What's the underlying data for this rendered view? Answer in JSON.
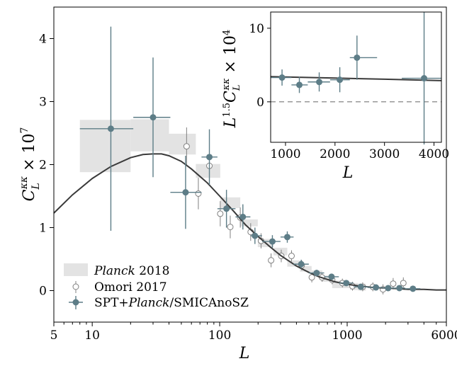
{
  "chart_data": [
    {
      "type": "line",
      "xscale": "log",
      "xlim": [
        5,
        6000
      ],
      "ylim": [
        -0.5,
        4.5
      ],
      "xticks": [
        5,
        10,
        100,
        1000,
        6000
      ],
      "xtick_labels": [
        "5",
        "10",
        "100",
        "1000",
        "6000"
      ],
      "yticks": [
        0,
        1,
        2,
        3,
        4
      ],
      "ytick_labels": [
        "0",
        "1",
        "2",
        "3",
        "4"
      ],
      "xlabel": "L",
      "ylabel": "C_L^{κκ} × 10^7",
      "legend_position": "lower-left",
      "colors": {
        "planck": "#e3e3e3",
        "omori": "#808080",
        "spt": "#5d7d87",
        "theory": "#3a3a3a"
      },
      "series": [
        {
          "name": "Planck 2018",
          "kind": "boxes",
          "boxes": [
            {
              "x0": 8,
              "x1": 20,
              "y0": 1.88,
              "y1": 2.71
            },
            {
              "x0": 20,
              "x1": 40,
              "y0": 2.21,
              "y1": 2.72
            },
            {
              "x0": 40,
              "x1": 65,
              "y0": 2.16,
              "y1": 2.49
            },
            {
              "x0": 65,
              "x1": 101,
              "y0": 1.79,
              "y1": 2.01
            },
            {
              "x0": 101,
              "x1": 145,
              "y0": 1.31,
              "y1": 1.48
            },
            {
              "x0": 145,
              "x1": 199,
              "y0": 1.02,
              "y1": 1.13
            },
            {
              "x0": 199,
              "x1": 264,
              "y0": 0.69,
              "y1": 0.82
            },
            {
              "x0": 264,
              "x1": 339,
              "y0": 0.56,
              "y1": 0.68
            },
            {
              "x0": 339,
              "x1": 426,
              "y0": 0.38,
              "y1": 0.48
            },
            {
              "x0": 426,
              "x1": 526,
              "y0": 0.3,
              "y1": 0.39
            },
            {
              "x0": 526,
              "x1": 638,
              "y0": 0.22,
              "y1": 0.32
            },
            {
              "x0": 638,
              "x1": 763,
              "y0": 0.14,
              "y1": 0.24
            },
            {
              "x0": 763,
              "x1": 901,
              "y0": 0.04,
              "y1": 0.16
            },
            {
              "x0": 901,
              "x1": 1053,
              "y0": 0.04,
              "y1": 0.14
            },
            {
              "x0": 1053,
              "x1": 1218,
              "y0": 0.01,
              "y1": 0.12
            },
            {
              "x0": 1218,
              "x1": 1400,
              "y0": 0.0,
              "y1": 0.11
            }
          ]
        },
        {
          "name": "Omori 2017",
          "kind": "open-points",
          "points": [
            {
              "x": 55,
              "y": 2.29,
              "yerr": 0.3
            },
            {
              "x": 68,
              "y": 1.54,
              "yerr": 0.25
            },
            {
              "x": 83,
              "y": 1.98,
              "yerr": 0.22
            },
            {
              "x": 101,
              "y": 1.22,
              "yerr": 0.2
            },
            {
              "x": 121,
              "y": 1.01,
              "yerr": 0.18
            },
            {
              "x": 145,
              "y": 1.16,
              "yerr": 0.16
            },
            {
              "x": 175,
              "y": 0.93,
              "yerr": 0.14
            },
            {
              "x": 211,
              "y": 0.79,
              "yerr": 0.12
            },
            {
              "x": 253,
              "y": 0.48,
              "yerr": 0.11
            },
            {
              "x": 304,
              "y": 0.55,
              "yerr": 0.1
            },
            {
              "x": 366,
              "y": 0.55,
              "yerr": 0.09
            },
            {
              "x": 440,
              "y": 0.4,
              "yerr": 0.08
            },
            {
              "x": 528,
              "y": 0.21,
              "yerr": 0.08
            },
            {
              "x": 635,
              "y": 0.21,
              "yerr": 0.07
            },
            {
              "x": 763,
              "y": 0.17,
              "yerr": 0.07
            },
            {
              "x": 917,
              "y": 0.12,
              "yerr": 0.07
            },
            {
              "x": 1101,
              "y": 0.07,
              "yerr": 0.07
            },
            {
              "x": 1323,
              "y": 0.06,
              "yerr": 0.07
            },
            {
              "x": 1590,
              "y": 0.06,
              "yerr": 0.07
            },
            {
              "x": 1910,
              "y": 0.02,
              "yerr": 0.08
            },
            {
              "x": 2295,
              "y": 0.11,
              "yerr": 0.09
            },
            {
              "x": 2758,
              "y": 0.12,
              "yerr": 0.09
            }
          ]
        },
        {
          "name": "SPT+Planck/SMICAnoSZ",
          "name_parts": [
            "SPT+",
            "Planck",
            "/SMICAnoSZ"
          ],
          "kind": "filled-points",
          "points": [
            {
              "x": 14,
              "y": 2.57,
              "yerr": 1.62,
              "x0": 8,
              "x1": 21
            },
            {
              "x": 30,
              "y": 2.75,
              "yerr": 0.95,
              "x0": 21,
              "x1": 41
            },
            {
              "x": 54,
              "y": 1.56,
              "yerr": 0.58,
              "x0": 41,
              "x1": 72
            },
            {
              "x": 83,
              "y": 2.12,
              "yerr": 0.44,
              "x0": 72,
              "x1": 96
            },
            {
              "x": 113,
              "y": 1.3,
              "yerr": 0.3,
              "x0": 96,
              "x1": 133
            },
            {
              "x": 152,
              "y": 1.17,
              "yerr": 0.2,
              "x0": 133,
              "x1": 174
            },
            {
              "x": 189,
              "y": 0.87,
              "yerr": 0.13,
              "x0": 174,
              "x1": 215
            },
            {
              "x": 259,
              "y": 0.78,
              "yerr": 0.1,
              "x0": 215,
              "x1": 300
            },
            {
              "x": 339,
              "y": 0.85,
              "yerr": 0.09,
              "x0": 300,
              "x1": 380
            },
            {
              "x": 436,
              "y": 0.42,
              "yerr": 0.07,
              "x0": 380,
              "x1": 500
            },
            {
              "x": 576,
              "y": 0.28,
              "yerr": 0.05,
              "x0": 500,
              "x1": 660
            },
            {
              "x": 754,
              "y": 0.22,
              "yerr": 0.04,
              "x0": 660,
              "x1": 860
            },
            {
              "x": 984,
              "y": 0.12,
              "yerr": 0.03,
              "x0": 860,
              "x1": 1120
            },
            {
              "x": 1280,
              "y": 0.06,
              "yerr": 0.03,
              "x0": 1120,
              "x1": 1450
            },
            {
              "x": 1681,
              "y": 0.05,
              "yerr": 0.02,
              "x0": 1450,
              "x1": 1900
            },
            {
              "x": 2097,
              "y": 0.04,
              "yerr": 0.02,
              "x0": 1900,
              "x1": 2300
            },
            {
              "x": 2569,
              "y": 0.04,
              "yerr": 0.02,
              "x0": 2300,
              "x1": 2850
            },
            {
              "x": 3279,
              "y": 0.03,
              "yerr": 0.02,
              "x0": 2850,
              "x1": 3750
            }
          ]
        },
        {
          "name": "theory",
          "kind": "curve",
          "x": [
            5,
            7,
            10,
            14,
            20,
            25,
            30,
            35,
            40,
            50,
            60,
            80,
            100,
            130,
            160,
            200,
            250,
            300,
            400,
            500,
            600,
            800,
            1000,
            1300,
            1600,
            2000,
            2500,
            3000,
            4000,
            5000,
            6000
          ],
          "y": [
            1.23,
            1.52,
            1.78,
            1.97,
            2.11,
            2.16,
            2.17,
            2.17,
            2.14,
            2.05,
            1.93,
            1.71,
            1.5,
            1.25,
            1.04,
            0.86,
            0.69,
            0.56,
            0.39,
            0.29,
            0.22,
            0.14,
            0.1,
            0.07,
            0.05,
            0.04,
            0.03,
            0.02,
            0.02,
            0.01,
            0.01
          ]
        }
      ]
    },
    {
      "type": "line",
      "inset": true,
      "xscale": "linear",
      "xlim": [
        700,
        4150
      ],
      "ylim": [
        -5.5,
        12.2
      ],
      "xticks": [
        1000,
        2000,
        3000,
        4000
      ],
      "xtick_labels": [
        "1000",
        "2000",
        "3000",
        "4000"
      ],
      "yticks": [
        0,
        10
      ],
      "ytick_labels": [
        "0",
        "10"
      ],
      "xlabel": "L",
      "ylabel": "L^{1.5} C_L^{κκ} × 10^4",
      "reference_line_y": 0,
      "series": [
        {
          "kind": "filled-points",
          "points": [
            {
              "x": 930,
              "y": 3.3,
              "yerr": 1.1,
              "x0": 700,
              "x1": 1120
            },
            {
              "x": 1280,
              "y": 2.3,
              "yerr": 1.1,
              "x0": 1120,
              "x1": 1450
            },
            {
              "x": 1681,
              "y": 2.7,
              "yerr": 1.3,
              "x0": 1450,
              "x1": 1900
            },
            {
              "x": 2097,
              "y": 3.0,
              "yerr": 1.7,
              "x0": 1900,
              "x1": 2300
            },
            {
              "x": 2444,
              "y": 6.0,
              "yerr": 3.0,
              "x0": 2300,
              "x1": 2850
            },
            {
              "x": 3800,
              "y": 3.2,
              "yerr": 9.0,
              "x0": 3350,
              "x1": 4150
            }
          ]
        },
        {
          "kind": "curve",
          "x": [
            700,
            1000,
            1500,
            2000,
            2500,
            3000,
            3500,
            4150
          ],
          "y": [
            3.42,
            3.37,
            3.3,
            3.23,
            3.15,
            3.07,
            2.98,
            2.88
          ]
        }
      ]
    }
  ]
}
